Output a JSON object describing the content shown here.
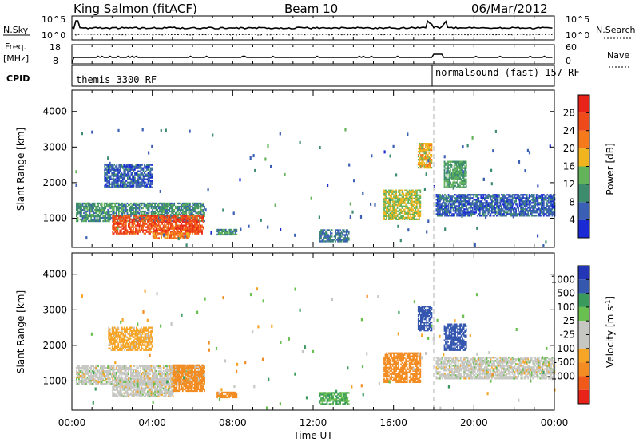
{
  "header": {
    "station": "King Salmon (fitACF)",
    "beam": "Beam 10",
    "date": "06/Mar/2012"
  },
  "noise_panel": {
    "left_label": "N.Sky",
    "right_label": "N.Search",
    "left_ticks": [
      "10^5",
      "10^0"
    ],
    "right_ticks": [
      "10^5",
      "10^0"
    ]
  },
  "freq_panel": {
    "left_label_1": "Freq.",
    "left_label_2": "[MHz]",
    "right_label": "Nave",
    "left_ticks": [
      "18",
      "8"
    ],
    "right_ticks": [
      "60",
      "0"
    ]
  },
  "cpid_panel": {
    "label": "CPID",
    "modes": [
      "themis 3300 RF",
      "normalsound (fast) 157 RF"
    ]
  },
  "colors": {
    "power_scale": [
      "#1a2bd6",
      "#3a5fb4",
      "#3e8c6e",
      "#63b35a",
      "#f0b41e",
      "#f47a1c",
      "#ef4a1a",
      "#e8241a"
    ],
    "velocity_scale": [
      "#e8241a",
      "#ef5a1a",
      "#f38c22",
      "#f6a526",
      "#c6c6c2",
      "#c6c6c2",
      "#69bf4f",
      "#3a9a5c",
      "#3557ae",
      "#2436b8"
    ],
    "frame": "#000000"
  },
  "chart_data": [
    {
      "type": "heatmap",
      "name": "power",
      "ylabel": "Slant Range [km]",
      "xlabel": "",
      "xlim_hours": [
        0,
        24
      ],
      "ylim_km": [
        180,
        4600
      ],
      "yticks": [
        "1000",
        "2000",
        "3000",
        "4000"
      ],
      "colorbar": {
        "label": "Power [dB]",
        "range": [
          0,
          32
        ],
        "ticks": [
          "4",
          "8",
          "12",
          "16",
          "20",
          "24",
          "28"
        ]
      },
      "mode_change_hour": 18.0,
      "echo_regions": [
        {
          "t": [
            0.2,
            6.6
          ],
          "r": [
            900,
            1400
          ],
          "level": 10
        },
        {
          "t": [
            2.0,
            6.5
          ],
          "r": [
            550,
            1050
          ],
          "level": 26
        },
        {
          "t": [
            4.0,
            5.8
          ],
          "r": [
            420,
            600
          ],
          "level": 22
        },
        {
          "t": [
            1.6,
            4.0
          ],
          "r": [
            1850,
            2500
          ],
          "level": 6
        },
        {
          "t": [
            7.2,
            8.2
          ],
          "r": [
            520,
            680
          ],
          "level": 10
        },
        {
          "t": [
            12.3,
            13.8
          ],
          "r": [
            330,
            650
          ],
          "level": 8
        },
        {
          "t": [
            15.5,
            17.3
          ],
          "r": [
            950,
            1800
          ],
          "level": 16
        },
        {
          "t": [
            17.2,
            17.9
          ],
          "r": [
            2400,
            3100
          ],
          "level": 18
        },
        {
          "t": [
            18.1,
            24.0
          ],
          "r": [
            1050,
            1650
          ],
          "level": 6
        },
        {
          "t": [
            18.5,
            19.6
          ],
          "r": [
            1850,
            2600
          ],
          "level": 12
        }
      ]
    },
    {
      "type": "heatmap",
      "name": "velocity",
      "ylabel": "Slant Range [km]",
      "xlabel": "Time UT",
      "xlim_hours": [
        0,
        24
      ],
      "ylim_km": [
        180,
        4600
      ],
      "yticks": [
        "1000",
        "2000",
        "3000",
        "4000"
      ],
      "xticks": [
        "00:00",
        "04:00",
        "08:00",
        "12:00",
        "16:00",
        "20:00",
        "00:00"
      ],
      "colorbar": {
        "label": "Velocity [m s^-1]",
        "ticks": [
          "1000",
          "500",
          "100",
          "25",
          "-25",
          "-100",
          "-500",
          "-1000"
        ]
      },
      "mode_change_hour": 18.0,
      "echo_regions": [
        {
          "t": [
            0.2,
            6.6
          ],
          "r": [
            900,
            1400
          ],
          "level": 0
        },
        {
          "t": [
            2.0,
            5.0
          ],
          "r": [
            550,
            1050
          ],
          "level": 0
        },
        {
          "t": [
            5.0,
            6.6
          ],
          "r": [
            700,
            1450
          ],
          "level": -200
        },
        {
          "t": [
            1.8,
            4.0
          ],
          "r": [
            1850,
            2500
          ],
          "level": -50
        },
        {
          "t": [
            7.2,
            8.2
          ],
          "r": [
            520,
            680
          ],
          "level": -200
        },
        {
          "t": [
            12.3,
            13.8
          ],
          "r": [
            330,
            650
          ],
          "level": 100
        },
        {
          "t": [
            15.5,
            17.3
          ],
          "r": [
            950,
            1800
          ],
          "level": -200
        },
        {
          "t": [
            17.2,
            17.9
          ],
          "r": [
            2400,
            3100
          ],
          "level": 600
        },
        {
          "t": [
            18.1,
            24.0
          ],
          "r": [
            1050,
            1650
          ],
          "level": 0
        },
        {
          "t": [
            18.5,
            19.6
          ],
          "r": [
            1850,
            2600
          ],
          "level": 600
        }
      ]
    }
  ]
}
